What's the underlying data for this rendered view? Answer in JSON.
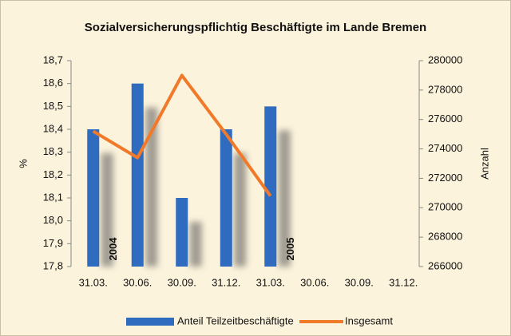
{
  "chart_data": {
    "type": "bar_line",
    "title": "Sozialversicherungspflichtig Beschäftigte im Lande Bremen",
    "y_label": "%",
    "y2_label": "Anzahl",
    "categories": [
      "31.03.",
      "30.06.",
      "30.09.",
      "31.12.",
      "31.03.",
      "30.06.",
      "30.09.",
      "31.12."
    ],
    "series": [
      {
        "name": "Anteil Teilzeitbeschäftigte",
        "type": "bar",
        "color": "#2f6bbf",
        "values": [
          18.4,
          18.6,
          18.1,
          18.4,
          18.5,
          null,
          null,
          null
        ]
      },
      {
        "name": "Insgesamt",
        "type": "line",
        "axis": "y2",
        "color": "#f07a2a",
        "values": [
          275200,
          273400,
          279000,
          275000,
          270800,
          null,
          null,
          null
        ]
      }
    ],
    "annotations": [
      "2004",
      "2005"
    ],
    "ylim": [
      17.8,
      18.7
    ],
    "yticks": [
      {
        "value": 17.8,
        "label": "17,8"
      },
      {
        "value": 17.9,
        "label": "17,9"
      },
      {
        "value": 18.0,
        "label": "18,0"
      },
      {
        "value": 18.1,
        "label": "18,1"
      },
      {
        "value": 18.2,
        "label": "18,2"
      },
      {
        "value": 18.3,
        "label": "18,3"
      },
      {
        "value": 18.4,
        "label": "18,4"
      },
      {
        "value": 18.5,
        "label": "18,5"
      },
      {
        "value": 18.6,
        "label": "18,6"
      },
      {
        "value": 18.7,
        "label": "18,7"
      }
    ],
    "y2lim": [
      266000,
      280000
    ],
    "y2ticks": [
      266000,
      268000,
      270000,
      272000,
      274000,
      276000,
      278000,
      280000
    ],
    "legend": "bottom"
  }
}
